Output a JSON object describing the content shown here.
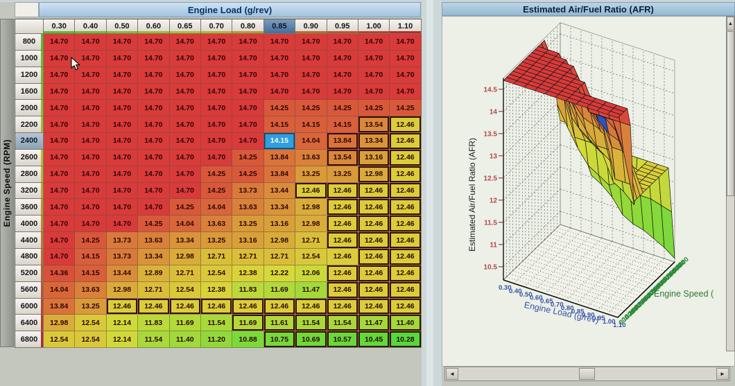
{
  "afr_table": {
    "title": "Engine Load (g/rev)",
    "row_axis_label": "Engine Speed (RPM)",
    "col_headers": [
      "0.30",
      "0.40",
      "0.50",
      "0.60",
      "0.65",
      "0.70",
      "0.80",
      "0.85",
      "0.90",
      "0.95",
      "1.00",
      "1.10"
    ],
    "row_headers": [
      "800",
      "1000",
      "1200",
      "1600",
      "2000",
      "2200",
      "2400",
      "2600",
      "2800",
      "3200",
      "3600",
      "4000",
      "4400",
      "4800",
      "5200",
      "5600",
      "6000",
      "6400",
      "6800"
    ],
    "selected": {
      "row_index": 6,
      "col_index": 7,
      "row": "2400",
      "col": "0.85",
      "value": "14.15"
    },
    "bordered_cells": [
      [
        5,
        10
      ],
      [
        5,
        11
      ],
      [
        6,
        9
      ],
      [
        6,
        10
      ],
      [
        6,
        11
      ],
      [
        7,
        9
      ],
      [
        7,
        10
      ],
      [
        7,
        11
      ],
      [
        8,
        10
      ],
      [
        8,
        11
      ],
      [
        9,
        8
      ],
      [
        9,
        9
      ],
      [
        9,
        10
      ],
      [
        9,
        11
      ],
      [
        10,
        9
      ],
      [
        10,
        10
      ],
      [
        10,
        11
      ],
      [
        11,
        9
      ],
      [
        11,
        10
      ],
      [
        11,
        11
      ],
      [
        12,
        9
      ],
      [
        12,
        10
      ],
      [
        12,
        11
      ],
      [
        13,
        10
      ],
      [
        13,
        11
      ],
      [
        14,
        9
      ],
      [
        14,
        10
      ],
      [
        14,
        11
      ],
      [
        15,
        9
      ],
      [
        15,
        10
      ],
      [
        15,
        11
      ],
      [
        16,
        2
      ],
      [
        16,
        3
      ],
      [
        16,
        4
      ],
      [
        16,
        5
      ],
      [
        16,
        6
      ],
      [
        16,
        7
      ],
      [
        16,
        8
      ],
      [
        16,
        9
      ],
      [
        16,
        10
      ],
      [
        16,
        11
      ],
      [
        17,
        6
      ],
      [
        17,
        7
      ],
      [
        17,
        8
      ],
      [
        17,
        9
      ],
      [
        17,
        10
      ],
      [
        17,
        11
      ],
      [
        18,
        7
      ],
      [
        18,
        8
      ],
      [
        18,
        9
      ],
      [
        18,
        10
      ],
      [
        18,
        11
      ]
    ],
    "colors": {
      "selected_cell_bg": "#2f9fe0",
      "value_text": "#2d0606",
      "marked_border": "#3a0c0c",
      "heat_max": 14.7,
      "heat_min": 10.28
    }
  },
  "chart_data": {
    "type": "surface",
    "title": "Estimated Air/Fuel Ratio (AFR)",
    "x": {
      "label": "Engine Load (g/rev)",
      "ticks": [
        "0.30",
        "0.40",
        "0.50",
        "0.60",
        "0.65",
        "0.70",
        "0.80",
        "0.85",
        "0.90",
        "0.95",
        "1.00",
        "1.10"
      ]
    },
    "y": {
      "label": "Engine Speed (",
      "ticks": [
        "800",
        "1000",
        "1200",
        "1600",
        "2000",
        "2200",
        "2400",
        "2600",
        "2800",
        "3200",
        "3600",
        "4000",
        "4400",
        "4800",
        "5200",
        "5600",
        "6000",
        "6400",
        "6800"
      ]
    },
    "z": {
      "label": "Estimated Air/Fuel Ratio (AFR)",
      "ticks": [
        "14.5",
        "14",
        "13.5",
        "13",
        "12.5",
        "12",
        "11.5",
        "11",
        "10.5"
      ],
      "range": [
        10.2,
        14.75
      ]
    },
    "grid": "dashed walls and dotted floor",
    "legend": "none",
    "highlight_cell": {
      "row": 6,
      "col": 7,
      "color": "#2a52c8"
    },
    "tick_colors": {
      "x": "#3352a8",
      "y": "#2e8b3a",
      "z": "#b04848"
    },
    "values": [
      [
        14.7,
        14.7,
        14.7,
        14.7,
        14.7,
        14.7,
        14.7,
        14.7,
        14.7,
        14.7,
        14.7,
        14.7
      ],
      [
        14.7,
        14.7,
        14.7,
        14.7,
        14.7,
        14.7,
        14.7,
        14.7,
        14.7,
        14.7,
        14.7,
        14.7
      ],
      [
        14.7,
        14.7,
        14.7,
        14.7,
        14.7,
        14.7,
        14.7,
        14.7,
        14.7,
        14.7,
        14.7,
        14.7
      ],
      [
        14.7,
        14.7,
        14.7,
        14.7,
        14.7,
        14.7,
        14.7,
        14.7,
        14.7,
        14.7,
        14.7,
        14.7
      ],
      [
        14.7,
        14.7,
        14.7,
        14.7,
        14.7,
        14.7,
        14.7,
        14.25,
        14.25,
        14.25,
        14.25,
        14.25
      ],
      [
        14.7,
        14.7,
        14.7,
        14.7,
        14.7,
        14.7,
        14.7,
        14.15,
        14.15,
        14.15,
        13.54,
        12.46
      ],
      [
        14.7,
        14.7,
        14.7,
        14.7,
        14.7,
        14.7,
        14.7,
        14.15,
        14.04,
        13.84,
        13.34,
        12.46
      ],
      [
        14.7,
        14.7,
        14.7,
        14.7,
        14.7,
        14.7,
        14.25,
        13.84,
        13.63,
        13.54,
        13.16,
        12.46
      ],
      [
        14.7,
        14.7,
        14.7,
        14.7,
        14.7,
        14.25,
        14.25,
        13.84,
        13.25,
        13.25,
        12.98,
        12.46
      ],
      [
        14.7,
        14.7,
        14.7,
        14.7,
        14.7,
        14.25,
        13.73,
        13.44,
        12.46,
        12.46,
        12.46,
        12.46
      ],
      [
        14.7,
        14.7,
        14.7,
        14.7,
        14.25,
        14.04,
        13.63,
        13.34,
        12.98,
        12.46,
        12.46,
        12.46
      ],
      [
        14.7,
        14.7,
        14.7,
        14.25,
        14.04,
        13.63,
        13.25,
        13.16,
        12.98,
        12.46,
        12.46,
        12.46
      ],
      [
        14.7,
        14.25,
        13.73,
        13.63,
        13.34,
        13.25,
        13.16,
        12.98,
        12.71,
        12.46,
        12.46,
        12.46
      ],
      [
        14.7,
        14.15,
        13.73,
        13.34,
        12.98,
        12.71,
        12.71,
        12.71,
        12.54,
        12.46,
        12.46,
        12.46
      ],
      [
        14.36,
        14.15,
        13.44,
        12.89,
        12.71,
        12.54,
        12.38,
        12.22,
        12.06,
        12.46,
        12.46,
        12.46
      ],
      [
        14.04,
        13.63,
        12.98,
        12.71,
        12.54,
        12.38,
        11.83,
        11.69,
        11.47,
        12.46,
        12.46,
        12.46
      ],
      [
        13.84,
        13.25,
        12.46,
        12.46,
        12.46,
        12.46,
        12.46,
        12.46,
        12.46,
        12.46,
        12.46,
        12.46
      ],
      [
        12.98,
        12.54,
        12.14,
        11.83,
        11.69,
        11.54,
        11.69,
        11.61,
        11.54,
        11.54,
        11.47,
        11.4
      ],
      [
        12.54,
        12.54,
        12.14,
        11.54,
        11.4,
        11.2,
        10.88,
        10.75,
        10.69,
        10.57,
        10.45,
        10.28
      ]
    ]
  },
  "icons": {
    "left_arrow": "◄",
    "right_arrow": "►",
    "up_arrow": "▲"
  }
}
